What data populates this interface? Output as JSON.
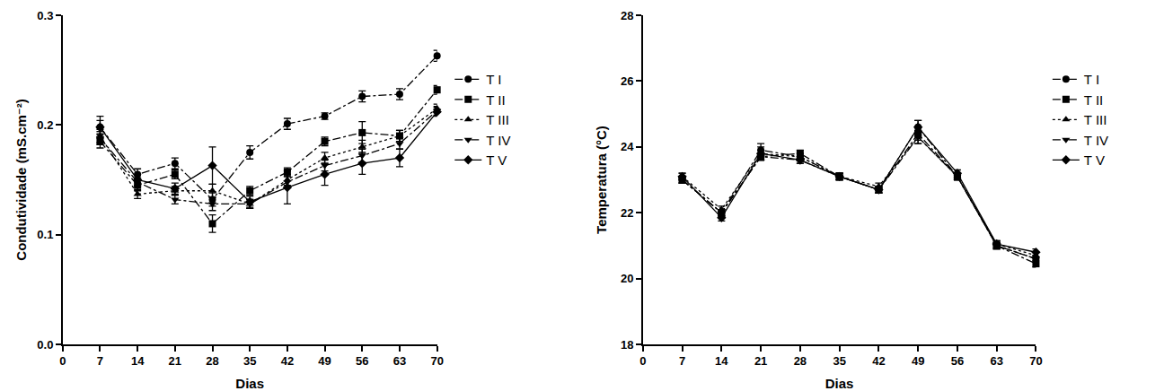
{
  "chart_data": [
    {
      "type": "line",
      "x_label": "Dias",
      "y_label": "Condutividade (mS.cm⁻²)",
      "x": [
        7,
        14,
        21,
        28,
        35,
        42,
        49,
        56,
        63,
        70
      ],
      "xlim": [
        0,
        70
      ],
      "xticks": [
        0,
        7,
        14,
        21,
        28,
        35,
        42,
        49,
        56,
        63,
        70
      ],
      "ylim": [
        0,
        0.3
      ],
      "yticks": [
        {
          "value": 0,
          "label": "0.0"
        },
        0.1,
        0.2,
        0.3
      ],
      "grid": false,
      "legend": "right",
      "series": [
        {
          "name": "T I",
          "color": "#000000",
          "marker": "circle",
          "line_style": "dashdot",
          "values": [
            0.198,
            0.155,
            0.165,
            0.132,
            0.175,
            0.201,
            0.208,
            0.226,
            0.228,
            0.263
          ],
          "errors": [
            0.006,
            0.005,
            0.005,
            0.006,
            0.006,
            0.005,
            0.003,
            0.005,
            0.005,
            0.005
          ]
        },
        {
          "name": "T II",
          "color": "#000000",
          "marker": "square",
          "line_style": "dashdot",
          "values": [
            0.185,
            0.145,
            0.155,
            0.11,
            0.14,
            0.157,
            0.185,
            0.193,
            0.19,
            0.232
          ],
          "errors": [
            0.006,
            0.005,
            0.004,
            0.008,
            0.004,
            0.004,
            0.004,
            0.01,
            0.005,
            0.004
          ]
        },
        {
          "name": "T III",
          "color": "#000000",
          "marker": "triangle-up",
          "line_style": "dotted",
          "values": [
            0.19,
            0.137,
            0.14,
            0.14,
            0.128,
            0.15,
            0.17,
            0.18,
            0.19,
            0.215
          ],
          "errors": [
            0.006,
            0.004,
            0.004,
            0.006,
            0.004,
            0.005,
            0.005,
            0.006,
            0.005,
            0.004
          ]
        },
        {
          "name": "T IV",
          "color": "#000000",
          "marker": "triangle-down",
          "line_style": "dashdot",
          "values": [
            0.188,
            0.148,
            0.132,
            0.128,
            0.128,
            0.148,
            0.163,
            0.172,
            0.183,
            0.213
          ],
          "errors": [
            0.006,
            0.004,
            0.004,
            0.006,
            0.004,
            0.005,
            0.005,
            0.006,
            0.005,
            0.004
          ]
        },
        {
          "name": "T V",
          "color": "#000000",
          "marker": "diamond",
          "line_style": "solid",
          "values": [
            0.198,
            0.15,
            0.142,
            0.163,
            0.13,
            0.143,
            0.155,
            0.165,
            0.17,
            0.212
          ],
          "errors": [
            0.01,
            0.005,
            0.005,
            0.017,
            0.005,
            0.015,
            0.01,
            0.01,
            0.008,
            0.004
          ]
        }
      ]
    },
    {
      "type": "line",
      "x_label": "Dias",
      "y_label": "Temperatura (°C)",
      "x": [
        7,
        14,
        21,
        28,
        35,
        42,
        49,
        56,
        63,
        70
      ],
      "xlim": [
        0,
        70
      ],
      "xticks": [
        0,
        7,
        14,
        21,
        28,
        35,
        42,
        49,
        56,
        63,
        70
      ],
      "ylim": [
        18,
        28
      ],
      "yticks": [
        18,
        20,
        22,
        24,
        26,
        28
      ],
      "grid": false,
      "legend": "right",
      "series": [
        {
          "name": "T I",
          "color": "#000000",
          "marker": "circle",
          "line_style": "dashdot",
          "values": [
            23.0,
            22.0,
            23.9,
            23.7,
            23.1,
            22.7,
            24.6,
            23.1,
            21.0,
            20.6
          ],
          "errors": [
            0.1,
            0.1,
            0.2,
            0.1,
            0.1,
            0.1,
            0.2,
            0.1,
            0.1,
            0.1
          ]
        },
        {
          "name": "T II",
          "color": "#000000",
          "marker": "square",
          "line_style": "dashdot",
          "values": [
            23.0,
            22.0,
            23.7,
            23.8,
            23.1,
            22.7,
            24.4,
            23.1,
            21.0,
            20.45
          ],
          "errors": [
            0.1,
            0.1,
            0.1,
            0.1,
            0.1,
            0.1,
            0.2,
            0.1,
            0.1,
            0.1
          ]
        },
        {
          "name": "T III",
          "color": "#000000",
          "marker": "triangle-up",
          "line_style": "dotted",
          "values": [
            23.1,
            22.1,
            23.8,
            23.7,
            23.1,
            22.8,
            24.3,
            23.1,
            21.05,
            20.7
          ],
          "errors": [
            0.1,
            0.1,
            0.1,
            0.1,
            0.1,
            0.1,
            0.2,
            0.1,
            0.1,
            0.1
          ]
        },
        {
          "name": "T IV",
          "color": "#000000",
          "marker": "triangle-down",
          "line_style": "dashdot",
          "values": [
            23.0,
            22.0,
            23.7,
            23.6,
            23.1,
            22.7,
            24.3,
            23.1,
            21.0,
            20.6
          ],
          "errors": [
            0.1,
            0.1,
            0.1,
            0.1,
            0.1,
            0.1,
            0.2,
            0.1,
            0.1,
            0.1
          ]
        },
        {
          "name": "T V",
          "color": "#000000",
          "marker": "diamond",
          "line_style": "solid",
          "values": [
            23.1,
            21.85,
            23.8,
            23.6,
            23.1,
            22.7,
            24.6,
            23.2,
            21.05,
            20.8
          ],
          "errors": [
            0.1,
            0.1,
            0.2,
            0.1,
            0.1,
            0.1,
            0.2,
            0.1,
            0.1,
            0.1
          ]
        }
      ]
    }
  ]
}
